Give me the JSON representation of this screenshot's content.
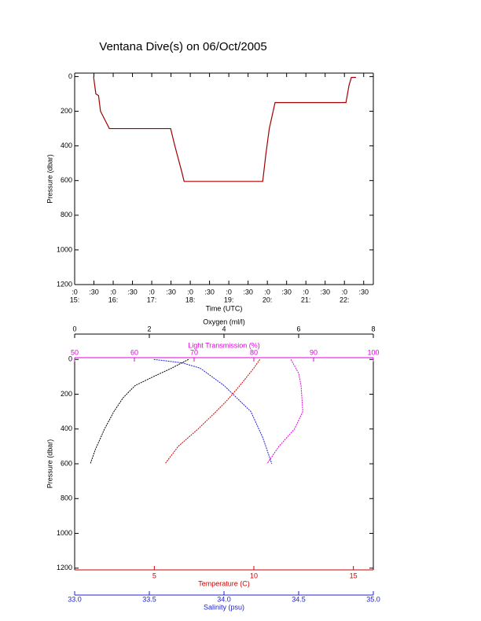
{
  "chart_data": [
    {
      "type": "line",
      "title": "Ventana Dive(s) on 06/Oct/2005",
      "xlabel": "Time (UTC)",
      "ylabel": "Pressure (dbar)",
      "color": "#a00000",
      "x": [
        15.49,
        15.55,
        15.62,
        15.67,
        15.9,
        17.49,
        17.6,
        17.78,
        17.84,
        19.88,
        19.96,
        20.05,
        20.2,
        22.04,
        22.12,
        22.18,
        22.3
      ],
      "values": [
        0,
        100,
        110,
        200,
        300,
        300,
        400,
        550,
        605,
        605,
        450,
        300,
        150,
        150,
        50,
        5,
        5
      ],
      "xlim": [
        15,
        22.75
      ],
      "xticks": [
        {
          "value": 15,
          "label": ":0"
        },
        {
          "value": 15.5,
          "label": ":30"
        },
        {
          "value": 16,
          "label": ":0"
        },
        {
          "value": 16.5,
          "label": ":30"
        },
        {
          "value": 17,
          "label": ":0"
        },
        {
          "value": 17.5,
          "label": ":30"
        },
        {
          "value": 18,
          "label": ":0"
        },
        {
          "value": 18.5,
          "label": ":30"
        },
        {
          "value": 19,
          "label": ":0"
        },
        {
          "value": 19.5,
          "label": ":30"
        },
        {
          "value": 20,
          "label": ":0"
        },
        {
          "value": 20.5,
          "label": ":30"
        },
        {
          "value": 21,
          "label": ":0"
        },
        {
          "value": 21.5,
          "label": ":30"
        },
        {
          "value": 22,
          "label": ":0"
        },
        {
          "value": 22.5,
          "label": ":30"
        }
      ],
      "xhour_labels": [
        {
          "value": 15,
          "label": "15:"
        },
        {
          "value": 16,
          "label": "16:"
        },
        {
          "value": 17,
          "label": "17:"
        },
        {
          "value": 18,
          "label": "18:"
        },
        {
          "value": 19,
          "label": "19:"
        },
        {
          "value": 20,
          "label": "20:"
        },
        {
          "value": 21,
          "label": "21:"
        },
        {
          "value": 22,
          "label": "22:"
        }
      ],
      "ylim": [
        -20,
        1200
      ],
      "yreverse": true,
      "yticks": [
        0,
        200,
        400,
        600,
        800,
        1000,
        1200
      ]
    },
    {
      "type": "profile",
      "ylabel": "Pressure (dbar)",
      "ylim": [
        -10,
        1210
      ],
      "yreverse": true,
      "yticks": [
        0,
        200,
        400,
        600,
        800,
        1000,
        1200
      ],
      "xaxes": [
        {
          "label": "Oxygen (ml/l)",
          "color": "#000000",
          "xlim": [
            0,
            8
          ],
          "xticks": [
            0,
            2,
            4,
            6,
            8
          ]
        },
        {
          "label": "Light Transmission (%)",
          "color": "#e000e0",
          "xlim": [
            50,
            100
          ],
          "xticks": [
            50,
            60,
            70,
            80,
            90,
            100
          ]
        },
        {
          "label": "Temperature (C)",
          "color": "#d00000",
          "xlim": [
            1,
            16
          ],
          "xticks": [
            5,
            10,
            15
          ]
        },
        {
          "label": "Salinity (psu)",
          "color": "#2020d0",
          "xlim": [
            33,
            35
          ],
          "xticks": [
            {
              "value": 33,
              "label": "33.0"
            },
            33.5,
            {
              "value": 34,
              "label": "34.0"
            },
            34.5,
            {
              "value": 35,
              "label": "35.0"
            }
          ]
        }
      ],
      "series": [
        {
          "xaxis": 0,
          "color": "#000000",
          "x": [
            3.05,
            2.6,
            2.1,
            1.62,
            1.3,
            1.05,
            0.8,
            0.55,
            0.42
          ],
          "values": [
            0,
            50,
            100,
            150,
            220,
            300,
            400,
            520,
            600
          ]
        },
        {
          "xaxis": 1,
          "color": "#e000e0",
          "x": [
            86.2,
            87.5,
            87.9,
            88.2,
            86.8,
            84.2,
            82.2
          ],
          "values": [
            0,
            80,
            150,
            300,
            400,
            500,
            600
          ]
        },
        {
          "xaxis": 2,
          "color": "#d00000",
          "x": [
            10.3,
            10.0,
            9.3,
            8.7,
            8.1,
            7.2,
            6.2,
            5.54
          ],
          "values": [
            0,
            50,
            150,
            230,
            300,
            400,
            500,
            600
          ]
        },
        {
          "xaxis": 3,
          "color": "#2020d0",
          "x": [
            33.53,
            33.72,
            33.84,
            34.0,
            34.18,
            34.26,
            34.32
          ],
          "values": [
            0,
            20,
            50,
            150,
            300,
            450,
            600
          ]
        }
      ]
    }
  ]
}
